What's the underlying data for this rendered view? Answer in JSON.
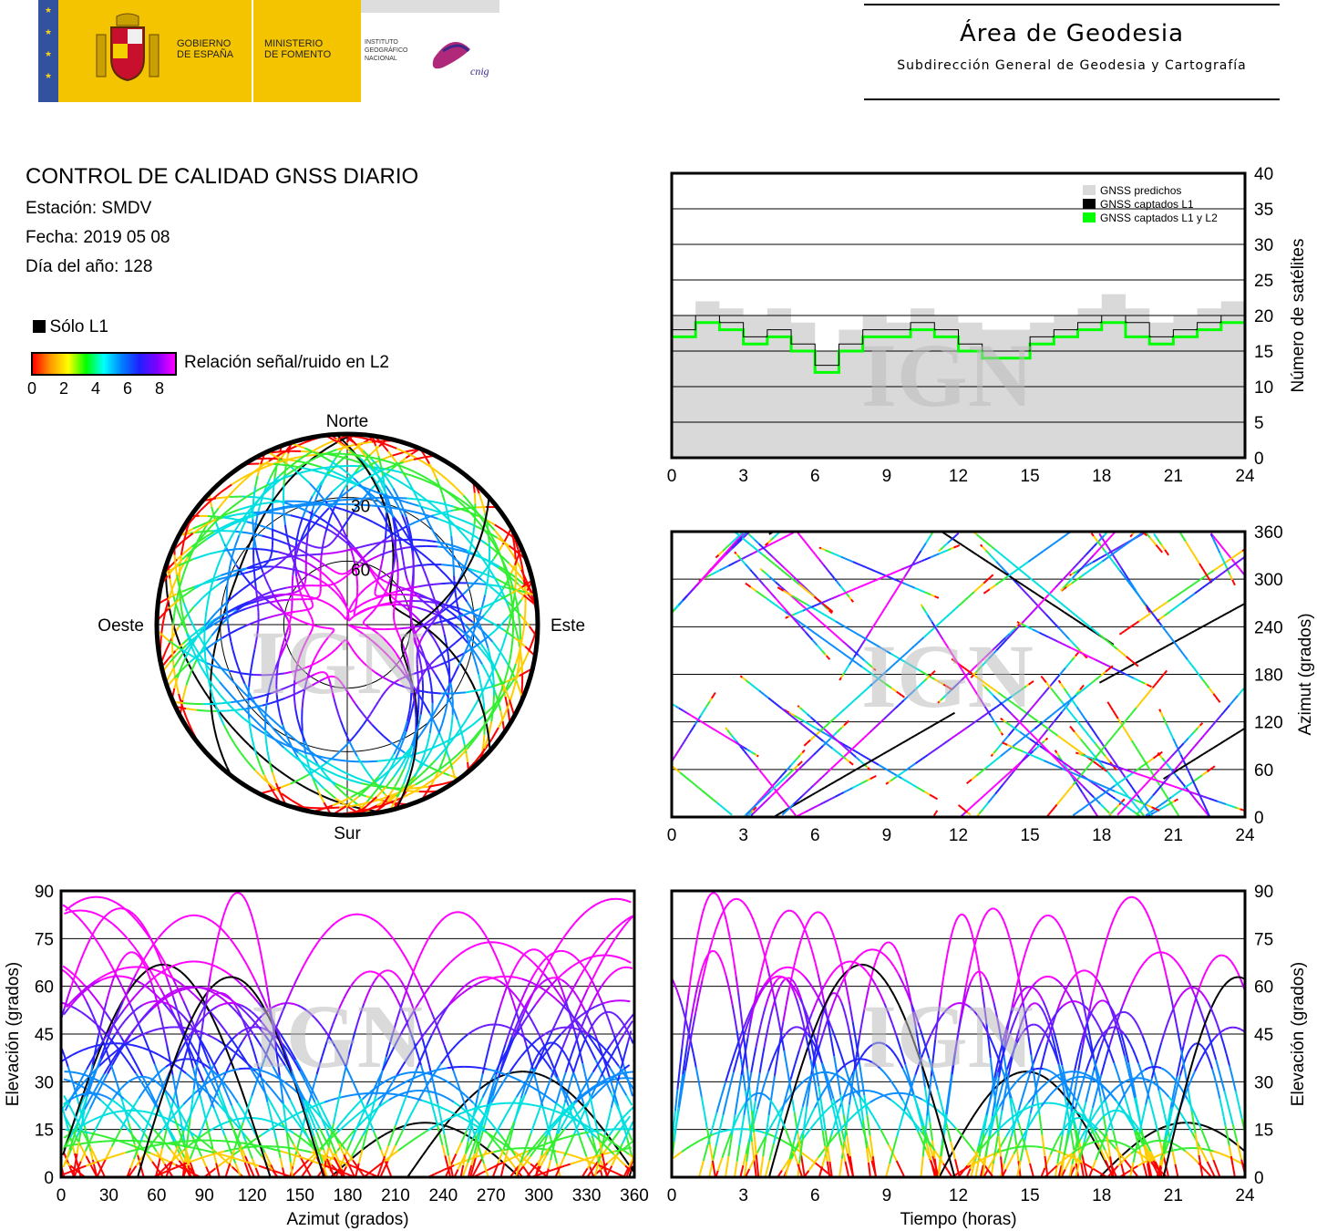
{
  "header": {
    "gobierno": "GOBIERNO\nDE ESPAÑA",
    "ministerio": "MINISTERIO\nDE FOMENTO",
    "instituto": "INSTITUTO\nGEOGRÁFICO\nNACIONAL",
    "cnig": "cnig",
    "area_title": "Área de Geodesia",
    "area_subtitle": "Subdirección General de Geodesia y Cartografía"
  },
  "info": {
    "title": "CONTROL DE CALIDAD GNSS DIARIO",
    "station": "Estación: SMDV",
    "date": "Fecha: 2019 05 08",
    "doy": "Día del año: 128",
    "solo_l1": "Sólo L1",
    "snr_label": "Relación señal/ruido en L2",
    "snr_ticks": [
      "0",
      "2",
      "4",
      "6",
      "8"
    ]
  },
  "watermark": "IGN",
  "colors": {
    "predicted": "#d9d9d9",
    "l1": "#000000",
    "l1l2": "#00ff00",
    "track_high": "#ff00ff",
    "track_mid": "#3d3dff",
    "track_low": "#00c8ff"
  },
  "chart_data": [
    {
      "id": "satellite-count",
      "type": "area",
      "ylabel": "Número de satélites",
      "xlim": [
        0,
        24
      ],
      "ylim": [
        0,
        40
      ],
      "xticks": [
        "0",
        "3",
        "6",
        "9",
        "12",
        "15",
        "18",
        "21",
        "24"
      ],
      "yticks": [
        "0",
        "5",
        "10",
        "15",
        "20",
        "25",
        "30",
        "35",
        "40"
      ],
      "grid": true,
      "legend_position": "top-right",
      "series": [
        {
          "name": "GNSS predichos",
          "x": [
            0,
            1,
            2,
            3,
            4,
            5,
            6,
            7,
            8,
            9,
            10,
            11,
            12,
            13,
            14,
            15,
            16,
            17,
            18,
            19,
            20,
            21,
            22,
            23,
            24
          ],
          "values": [
            20,
            22,
            21,
            20,
            21,
            19,
            15,
            18,
            20,
            19,
            21,
            20,
            19,
            18,
            18,
            19,
            20,
            21,
            23,
            21,
            19,
            20,
            21,
            22,
            20
          ]
        },
        {
          "name": "GNSS captados L1",
          "x": [
            0,
            1,
            2,
            3,
            4,
            5,
            6,
            7,
            8,
            9,
            10,
            11,
            12,
            13,
            14,
            15,
            16,
            17,
            18,
            19,
            20,
            21,
            22,
            23,
            24
          ],
          "values": [
            18,
            20,
            19,
            17,
            18,
            16,
            13,
            16,
            18,
            18,
            19,
            18,
            16,
            15,
            15,
            17,
            18,
            19,
            20,
            19,
            17,
            18,
            19,
            20,
            18
          ]
        },
        {
          "name": "GNSS captados L1 y L2",
          "x": [
            0,
            1,
            2,
            3,
            4,
            5,
            6,
            7,
            8,
            9,
            10,
            11,
            12,
            13,
            14,
            15,
            16,
            17,
            18,
            19,
            20,
            21,
            22,
            23,
            24
          ],
          "values": [
            17,
            19,
            18,
            16,
            17,
            15,
            12,
            15,
            17,
            17,
            18,
            17,
            15,
            14,
            14,
            16,
            17,
            18,
            19,
            17,
            16,
            17,
            18,
            19,
            17
          ]
        }
      ]
    },
    {
      "id": "azimuth-time",
      "type": "scatter",
      "ylabel": "Azimut (grados)",
      "xlim": [
        0,
        24
      ],
      "ylim": [
        0,
        360
      ],
      "xticks": [
        "0",
        "3",
        "6",
        "9",
        "12",
        "15",
        "18",
        "21",
        "24"
      ],
      "yticks": [
        "0",
        "60",
        "120",
        "180",
        "240",
        "300",
        "360"
      ],
      "grid": true
    },
    {
      "id": "skyplot",
      "type": "scatter",
      "labels": {
        "north": "Norte",
        "south": "Sur",
        "east": "Este",
        "west": "Oeste"
      },
      "rings": [
        "30",
        "60"
      ]
    },
    {
      "id": "elevation-azimuth",
      "type": "scatter",
      "xlabel": "Azimut (grados)",
      "ylabel": "Elevación (grados)",
      "xlim": [
        0,
        360
      ],
      "ylim": [
        0,
        90
      ],
      "xticks": [
        "0",
        "30",
        "60",
        "90",
        "120",
        "150",
        "180",
        "210",
        "240",
        "270",
        "300",
        "330",
        "360"
      ],
      "yticks": [
        "0",
        "15",
        "30",
        "45",
        "60",
        "75",
        "90"
      ],
      "grid": true
    },
    {
      "id": "elevation-time",
      "type": "line",
      "xlabel": "Tiempo (horas)",
      "ylabel": "Elevación (grados)",
      "xlim": [
        0,
        24
      ],
      "ylim": [
        0,
        90
      ],
      "xticks": [
        "0",
        "3",
        "6",
        "9",
        "12",
        "15",
        "18",
        "21",
        "24"
      ],
      "yticks": [
        "0",
        "15",
        "30",
        "45",
        "60",
        "75",
        "90"
      ],
      "grid": true
    }
  ]
}
